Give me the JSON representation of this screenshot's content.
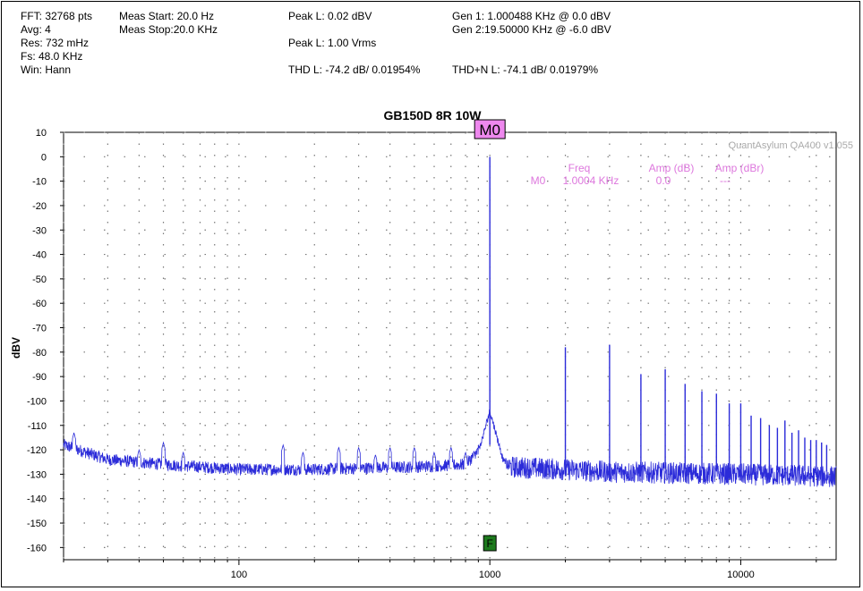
{
  "header": {
    "fft": "FFT: 32768 pts",
    "avg": "Avg: 4",
    "res": "Res: 732 mHz",
    "fs": "Fs: 48.0 KHz",
    "win": "Win: Hann",
    "meas_start": "Meas Start: 20.0 Hz",
    "meas_stop": "Meas Stop:20.0 KHz",
    "peak_l_dbv": "Peak L: 0.02 dBV",
    "peak_l_vrms": "Peak L: 1.00 Vrms",
    "thd_l": "THD L: -74.2 dB/ 0.01954%",
    "gen1": "Gen 1: 1.000488 KHz @ 0.0  dBV",
    "gen2": "Gen 2:19.50000 KHz @ -6.0  dBV",
    "thdn_l": "THD+N L: -74.1 dB/ 0.01979%"
  },
  "watermark": "QuantAsylum QA400 v1.055",
  "marker_table": {
    "col_freq": "Freq",
    "col_amp_db": "Amp (dB)",
    "col_amp_dbr": "Amp (dBr)",
    "row_name": "M0",
    "row_freq": "1.0004 KHz",
    "row_amp_db": "0.0",
    "row_amp_dbr": "---"
  },
  "marker_label": "M0",
  "fundamental_marker_label": "F",
  "colors": {
    "trace": "#2b2bd9",
    "marker_fill": "#ee88ee",
    "marker_text": "#dd77dd",
    "fundamental_marker": "#1d7a1d",
    "grid": "#777777"
  },
  "chart_data": {
    "type": "line",
    "title": "GB150D 8R 10W",
    "ylabel": "dBV",
    "xlabel": "",
    "x_scale": "log",
    "xlim": [
      20,
      24000
    ],
    "ylim": [
      -165,
      10
    ],
    "x_ticks": [
      100,
      1000,
      10000
    ],
    "y_ticks": [
      10,
      0,
      -10,
      -20,
      -30,
      -40,
      -50,
      -60,
      -70,
      -80,
      -90,
      -100,
      -110,
      -120,
      -130,
      -140,
      -150,
      -160
    ],
    "grid": true,
    "fundamental": {
      "freq": 1000,
      "amp": 0
    },
    "harmonics": [
      {
        "freq": 2000,
        "amp": -78
      },
      {
        "freq": 3000,
        "amp": -77
      },
      {
        "freq": 4000,
        "amp": -89
      },
      {
        "freq": 5000,
        "amp": -87
      },
      {
        "freq": 6000,
        "amp": -93
      },
      {
        "freq": 7000,
        "amp": -96
      },
      {
        "freq": 8000,
        "amp": -97
      },
      {
        "freq": 9000,
        "amp": -101
      },
      {
        "freq": 10000,
        "amp": -101
      },
      {
        "freq": 11000,
        "amp": -106
      },
      {
        "freq": 12000,
        "amp": -107
      },
      {
        "freq": 13000,
        "amp": -110
      },
      {
        "freq": 14000,
        "amp": -111
      },
      {
        "freq": 15000,
        "amp": -108
      },
      {
        "freq": 16000,
        "amp": -113
      },
      {
        "freq": 17000,
        "amp": -112
      },
      {
        "freq": 18000,
        "amp": -115
      },
      {
        "freq": 19000,
        "amp": -116
      },
      {
        "freq": 20000,
        "amp": -116
      },
      {
        "freq": 21000,
        "amp": -117
      },
      {
        "freq": 22000,
        "amp": -118
      }
    ],
    "low_spurs": [
      {
        "freq": 22,
        "amp": -113
      },
      {
        "freq": 40,
        "amp": -120
      },
      {
        "freq": 50,
        "amp": -117
      },
      {
        "freq": 60,
        "amp": -121
      },
      {
        "freq": 150,
        "amp": -118
      },
      {
        "freq": 180,
        "amp": -121
      },
      {
        "freq": 250,
        "amp": -119
      },
      {
        "freq": 300,
        "amp": -119
      },
      {
        "freq": 350,
        "amp": -122
      },
      {
        "freq": 400,
        "amp": -119
      },
      {
        "freq": 500,
        "amp": -119
      },
      {
        "freq": 600,
        "amp": -121
      },
      {
        "freq": 700,
        "amp": -119
      },
      {
        "freq": 800,
        "amp": -121
      }
    ],
    "noise_floor": [
      {
        "freq": 20,
        "amp": -118
      },
      {
        "freq": 30,
        "amp": -124
      },
      {
        "freq": 50,
        "amp": -126
      },
      {
        "freq": 100,
        "amp": -128
      },
      {
        "freq": 200,
        "amp": -128
      },
      {
        "freq": 500,
        "amp": -127
      },
      {
        "freq": 800,
        "amp": -126
      },
      {
        "freq": 950,
        "amp": -118
      },
      {
        "freq": 1050,
        "amp": -122
      },
      {
        "freq": 1200,
        "amp": -127
      },
      {
        "freq": 3000,
        "amp": -129
      },
      {
        "freq": 10000,
        "amp": -130
      },
      {
        "freq": 24000,
        "amp": -131
      }
    ]
  }
}
